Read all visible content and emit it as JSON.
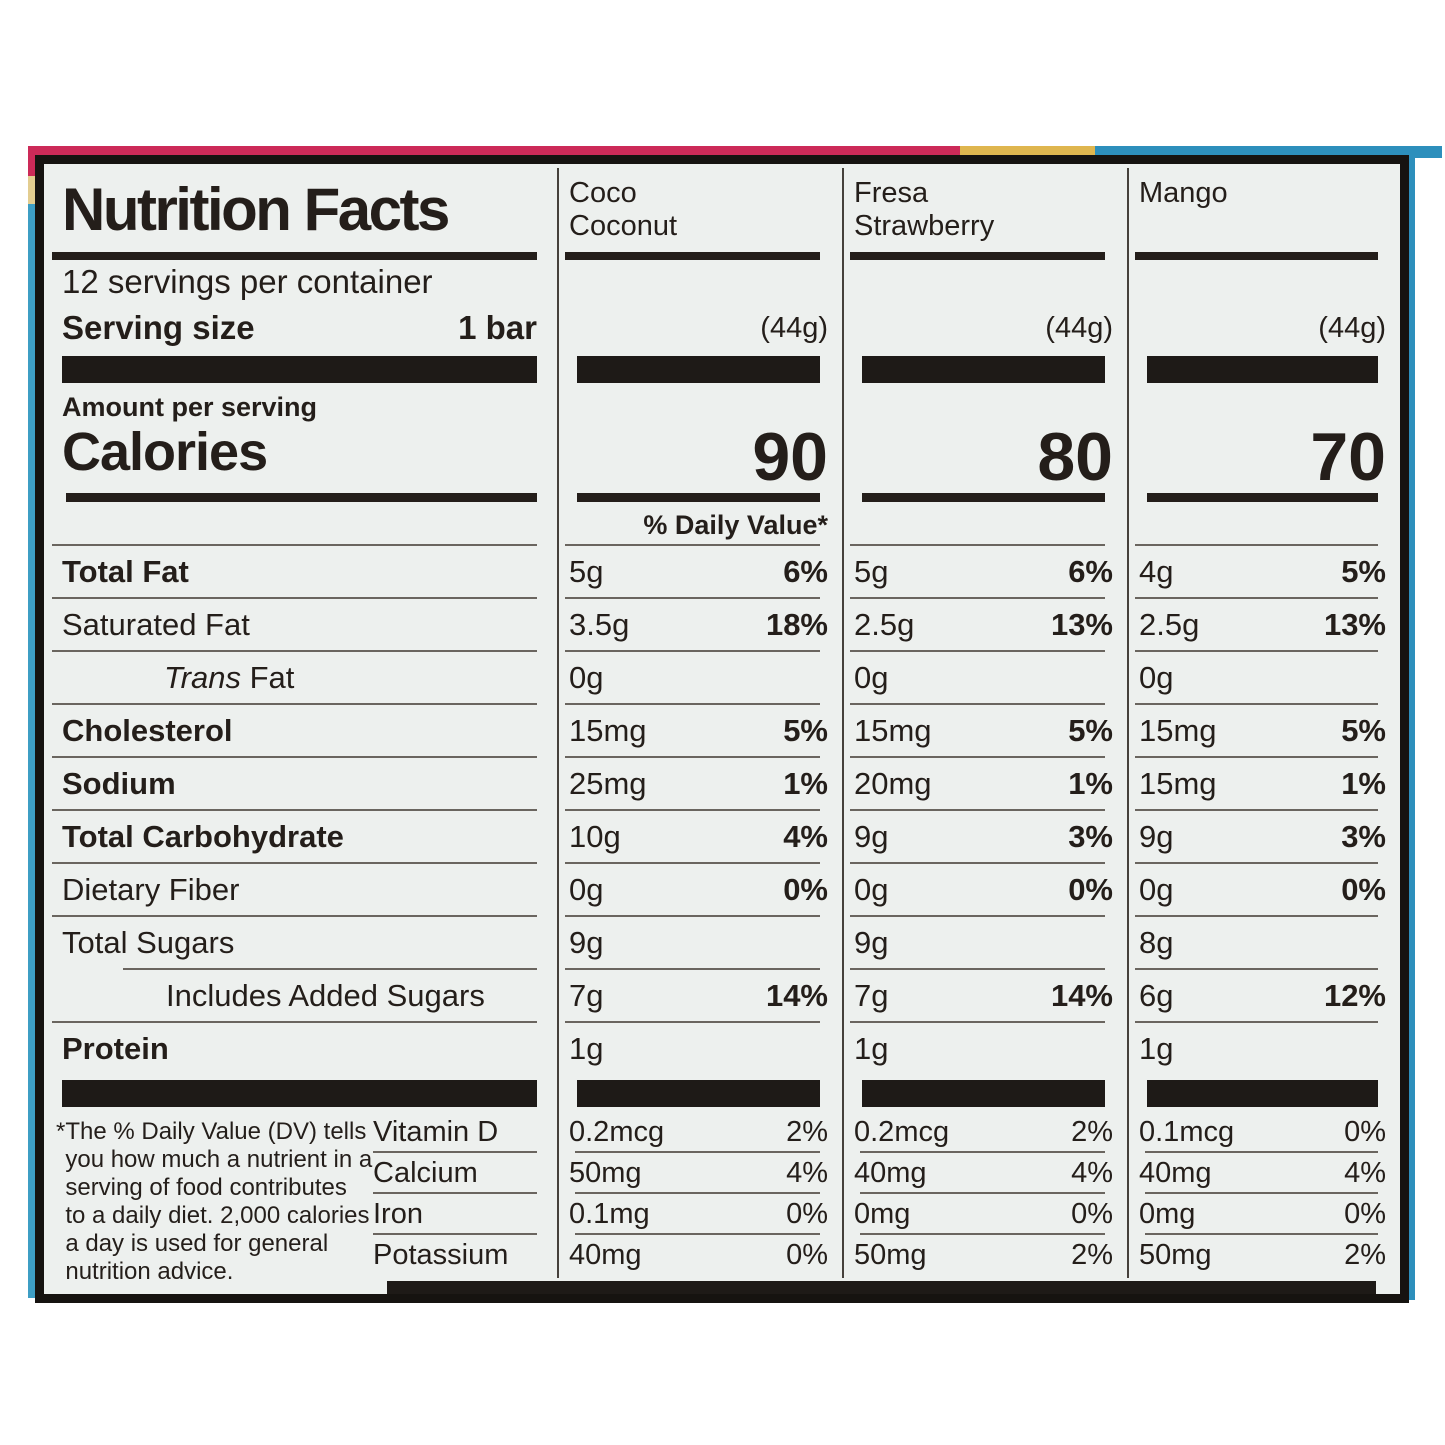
{
  "panel": {
    "title": "Nutrition Facts",
    "servings_per_container": "12 servings per container",
    "serving_size_label": "Serving size",
    "serving_size_value": "1 bar",
    "amount_per_serving": "Amount per serving",
    "calories_label": "Calories",
    "daily_value_header": "% Daily Value*"
  },
  "flavors": [
    {
      "name_line1": "Coco",
      "name_line2": "Coconut",
      "serving_weight": "(44g)",
      "calories": "90"
    },
    {
      "name_line1": "Fresa",
      "name_line2": "Strawberry",
      "serving_weight": "(44g)",
      "calories": "80"
    },
    {
      "name_line1": "Mango",
      "name_line2": "",
      "serving_weight": "(44g)",
      "calories": "70"
    }
  ],
  "nutrients": [
    {
      "name": "Total Fat",
      "values": [
        {
          "amount": "5g",
          "dv": "6%"
        },
        {
          "amount": "5g",
          "dv": "6%"
        },
        {
          "amount": "4g",
          "dv": "5%"
        }
      ]
    },
    {
      "name": "Saturated Fat",
      "values": [
        {
          "amount": "3.5g",
          "dv": "18%"
        },
        {
          "amount": "2.5g",
          "dv": "13%"
        },
        {
          "amount": "2.5g",
          "dv": "13%"
        }
      ]
    },
    {
      "name_italic": "Trans",
      "name": " Fat",
      "values": [
        {
          "amount": "0g",
          "dv": ""
        },
        {
          "amount": "0g",
          "dv": ""
        },
        {
          "amount": "0g",
          "dv": ""
        }
      ]
    },
    {
      "name": "Cholesterol",
      "values": [
        {
          "amount": "15mg",
          "dv": "5%"
        },
        {
          "amount": "15mg",
          "dv": "5%"
        },
        {
          "amount": "15mg",
          "dv": "5%"
        }
      ]
    },
    {
      "name": "Sodium",
      "values": [
        {
          "amount": "25mg",
          "dv": "1%"
        },
        {
          "amount": "20mg",
          "dv": "1%"
        },
        {
          "amount": "15mg",
          "dv": "1%"
        }
      ]
    },
    {
      "name": "Total Carbohydrate",
      "values": [
        {
          "amount": "10g",
          "dv": "4%"
        },
        {
          "amount": "9g",
          "dv": "3%"
        },
        {
          "amount": "9g",
          "dv": "3%"
        }
      ]
    },
    {
      "name": "Dietary Fiber",
      "values": [
        {
          "amount": "0g",
          "dv": "0%"
        },
        {
          "amount": "0g",
          "dv": "0%"
        },
        {
          "amount": "0g",
          "dv": "0%"
        }
      ]
    },
    {
      "name": "Total Sugars",
      "values": [
        {
          "amount": "9g",
          "dv": ""
        },
        {
          "amount": "9g",
          "dv": ""
        },
        {
          "amount": "8g",
          "dv": ""
        }
      ]
    },
    {
      "name": "Includes Added Sugars",
      "values": [
        {
          "amount": "7g",
          "dv": "14%"
        },
        {
          "amount": "7g",
          "dv": "14%"
        },
        {
          "amount": "6g",
          "dv": "12%"
        }
      ]
    },
    {
      "name": "Protein",
      "values": [
        {
          "amount": "1g",
          "dv": ""
        },
        {
          "amount": "1g",
          "dv": ""
        },
        {
          "amount": "1g",
          "dv": ""
        }
      ]
    }
  ],
  "micronutrients": [
    {
      "name": "Vitamin D",
      "values": [
        {
          "amount": "0.2mcg",
          "dv": "2%"
        },
        {
          "amount": "0.2mcg",
          "dv": "2%"
        },
        {
          "amount": "0.1mcg",
          "dv": "0%"
        }
      ]
    },
    {
      "name": "Calcium",
      "values": [
        {
          "amount": "50mg",
          "dv": "4%"
        },
        {
          "amount": "40mg",
          "dv": "4%"
        },
        {
          "amount": "40mg",
          "dv": "4%"
        }
      ]
    },
    {
      "name": "Iron",
      "values": [
        {
          "amount": "0.1mg",
          "dv": "0%"
        },
        {
          "amount": "0mg",
          "dv": "0%"
        },
        {
          "amount": "0mg",
          "dv": "0%"
        }
      ]
    },
    {
      "name": "Potassium",
      "values": [
        {
          "amount": "40mg",
          "dv": "0%"
        },
        {
          "amount": "50mg",
          "dv": "2%"
        },
        {
          "amount": "50mg",
          "dv": "2%"
        }
      ]
    }
  ],
  "footnote": {
    "asterisk": "*",
    "text": "The % Daily Value (DV) tells you how much a nutrient in a serving of food contributes to a daily diet. 2,000 calories a day is used for general nutrition advice."
  },
  "colors": {
    "paper": "#edf0ee",
    "ink": "#241e1a",
    "strip_pink": "#cc2a58",
    "strip_gold": "#dfb64f",
    "strip_blue": "#2d8fbc"
  }
}
